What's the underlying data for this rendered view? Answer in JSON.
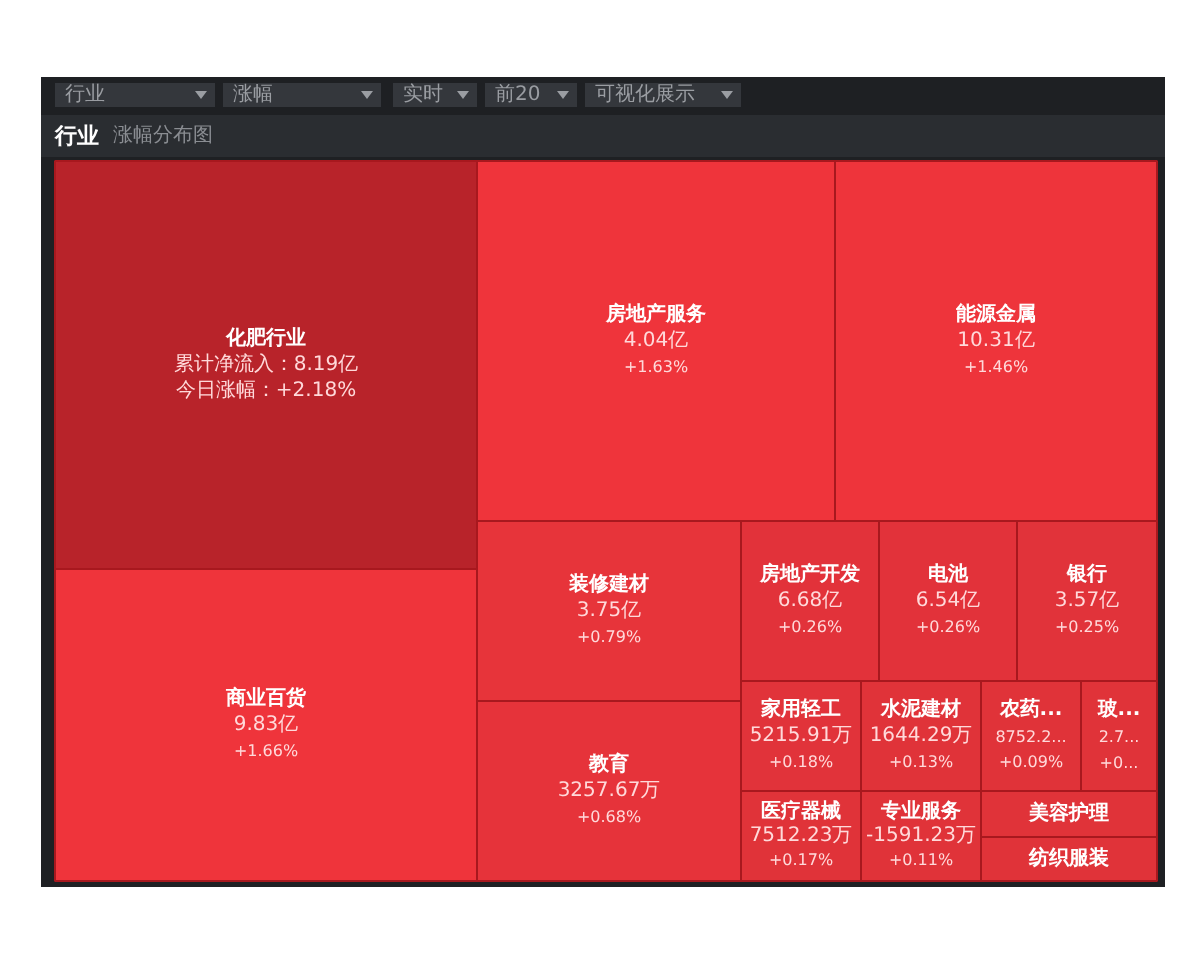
{
  "chart_data": {
    "type": "other",
    "title": "行业",
    "subtitle": "涨幅分布图",
    "annotations": [
      "行业",
      "涨幅",
      "实时",
      "前20",
      "可视化展示",
      "累计净流入：8.19亿",
      "4.04亿",
      "10.31亿",
      "9.83亿",
      "3.75亿",
      "3257.67万",
      "6.68亿",
      "6.54亿",
      "3.57亿",
      "5215.91万",
      "1644.29万",
      "8752.2...",
      "2.7...",
      "7512.23万",
      "-1591.23万"
    ],
    "categories": [
      "化肥行业",
      "房地产服务",
      "能源金属",
      "商业百货",
      "装修建材",
      "教育",
      "房地产开发",
      "电池",
      "银行",
      "家用轻工",
      "水泥建材",
      "农药...",
      "玻...",
      "医疗器械",
      "专业服务",
      "美容护理",
      "纺织服装"
    ],
    "values": [
      2.18,
      1.63,
      1.46,
      1.66,
      0.79,
      0.68,
      0.26,
      0.26,
      0.25,
      0.18,
      0.13,
      0.09,
      null,
      0.17,
      0.11,
      null,
      null
    ],
    "value_labels": [
      "今日涨幅：+2.18%",
      "+1.63%",
      "+1.46%",
      "+1.66%",
      "+0.79%",
      "+0.68%",
      "+0.26%",
      "+0.26%",
      "+0.25%",
      "+0.18%",
      "+0.13%",
      "+0.09%",
      "+0...",
      "+0.17%",
      "+0.11%",
      null,
      null
    ],
    "colors": [
      "#b8232a",
      "#f5353c",
      "#f5353c",
      "#f5353c",
      "#f5353c",
      "#f5353c",
      "#f5353c",
      "#f5353c",
      "#f5353c",
      "#f5353c",
      "#f5353c",
      "#f5353c",
      "#f5353c",
      "#f5353c",
      "#f5353c",
      "#f5353c",
      "#f5353c"
    ]
  }
}
